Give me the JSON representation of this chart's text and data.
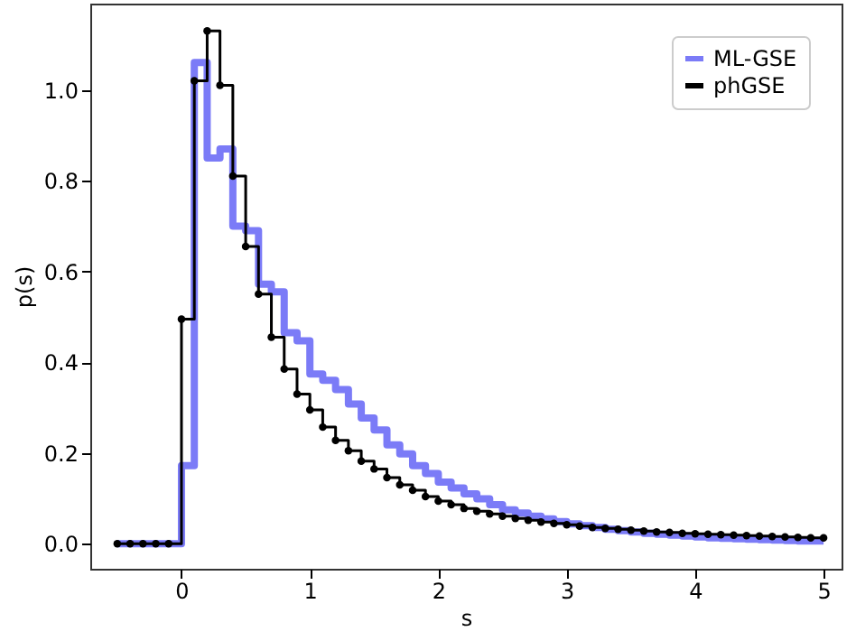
{
  "chart_data": {
    "type": "step",
    "xlabel": "s",
    "ylabel": "p(s)",
    "xlim": [
      -0.71,
      5.14
    ],
    "ylim": [
      -0.055,
      1.19
    ],
    "xticks": [
      0,
      1,
      2,
      3,
      4,
      5
    ],
    "yticks": [
      {
        "value": 0,
        "label": "0.0"
      },
      0.2,
      0.4,
      0.6,
      0.8,
      {
        "value": 1,
        "label": "1.0"
      }
    ],
    "grid": false,
    "legend": "top right",
    "x": [
      -0.5,
      -0.4,
      -0.3,
      -0.2,
      -0.1,
      0.0,
      0.1,
      0.2,
      0.3,
      0.4,
      0.5,
      0.6,
      0.7,
      0.8,
      0.9,
      1.0,
      1.1,
      1.2,
      1.3,
      1.4,
      1.5,
      1.6,
      1.7,
      1.8,
      1.9,
      2.0,
      2.1,
      2.2,
      2.3,
      2.4,
      2.5,
      2.6,
      2.7,
      2.8,
      2.9,
      3.0,
      3.1,
      3.2,
      3.3,
      3.4,
      3.5,
      3.6,
      3.7,
      3.8,
      3.9,
      4.0,
      4.1,
      4.2,
      4.3,
      4.4,
      4.5,
      4.6,
      4.7,
      4.8,
      4.9,
      5.0
    ],
    "series": [
      {
        "name": "ML-GSE",
        "color": "#7b7bf7",
        "marker": "none",
        "values": [
          0,
          0,
          0,
          0,
          0,
          0.172,
          1.06,
          0.85,
          0.87,
          0.7,
          0.69,
          0.572,
          0.555,
          0.465,
          0.447,
          0.374,
          0.36,
          0.34,
          0.308,
          0.277,
          0.251,
          0.218,
          0.198,
          0.172,
          0.155,
          0.136,
          0.123,
          0.11,
          0.099,
          0.086,
          0.075,
          0.068,
          0.061,
          0.055,
          0.049,
          0.044,
          0.04,
          0.036,
          0.032,
          0.029,
          0.026,
          0.023,
          0.021,
          0.019,
          0.017,
          0.015,
          0.013,
          0.012,
          0.011,
          0.01,
          0.009,
          0.008,
          0.007,
          0.006,
          0.006,
          0.006
        ]
      },
      {
        "name": "phGSE",
        "color": "#000000",
        "marker": "circle",
        "values": [
          0,
          0,
          0,
          0,
          0,
          0.495,
          1.02,
          1.13,
          1.01,
          0.81,
          0.655,
          0.55,
          0.455,
          0.385,
          0.33,
          0.295,
          0.257,
          0.228,
          0.205,
          0.182,
          0.165,
          0.146,
          0.13,
          0.118,
          0.104,
          0.094,
          0.086,
          0.078,
          0.072,
          0.066,
          0.061,
          0.056,
          0.052,
          0.048,
          0.045,
          0.042,
          0.039,
          0.036,
          0.034,
          0.032,
          0.03,
          0.028,
          0.026,
          0.025,
          0.023,
          0.022,
          0.021,
          0.02,
          0.019,
          0.018,
          0.017,
          0.016,
          0.015,
          0.014,
          0.013,
          0.013
        ]
      }
    ]
  }
}
